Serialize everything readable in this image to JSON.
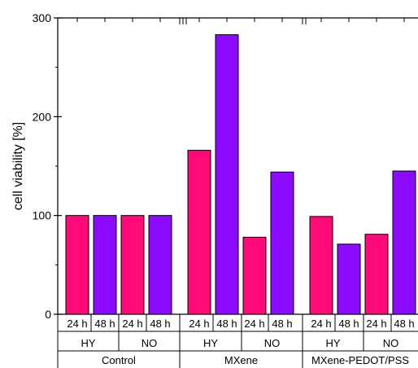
{
  "chart_data": {
    "type": "bar",
    "title": "",
    "xlabel": "",
    "ylabel": "cell viability [%]",
    "ylim": [
      0,
      300
    ],
    "yticks": [
      0,
      100,
      200,
      300
    ],
    "grid": false,
    "legend": "none",
    "colors": {
      "24 h": "#ff0a78",
      "48 h": "#8c0aff"
    },
    "time_labels": [
      "24 h",
      "48 h"
    ],
    "conditions": [
      "HY",
      "NO"
    ],
    "groups": [
      "Control",
      "MXene",
      "MXene-PEDOT/PSS"
    ],
    "bars": [
      {
        "group": "Control",
        "condition": "HY",
        "time": "24 h",
        "value": 100
      },
      {
        "group": "Control",
        "condition": "HY",
        "time": "48 h",
        "value": 100
      },
      {
        "group": "Control",
        "condition": "NO",
        "time": "24 h",
        "value": 100
      },
      {
        "group": "Control",
        "condition": "NO",
        "time": "48 h",
        "value": 100
      },
      {
        "group": "MXene",
        "condition": "HY",
        "time": "24 h",
        "value": 166
      },
      {
        "group": "MXene",
        "condition": "HY",
        "time": "48 h",
        "value": 283
      },
      {
        "group": "MXene",
        "condition": "NO",
        "time": "24 h",
        "value": 78
      },
      {
        "group": "MXene",
        "condition": "NO",
        "time": "48 h",
        "value": 144
      },
      {
        "group": "MXene-PEDOT/PSS",
        "condition": "HY",
        "time": "24 h",
        "value": 99
      },
      {
        "group": "MXene-PEDOT/PSS",
        "condition": "HY",
        "time": "48 h",
        "value": 71
      },
      {
        "group": "MXene-PEDOT/PSS",
        "condition": "NO",
        "time": "24 h",
        "value": 81
      },
      {
        "group": "MXene-PEDOT/PSS",
        "condition": "NO",
        "time": "48 h",
        "value": 145
      }
    ]
  }
}
